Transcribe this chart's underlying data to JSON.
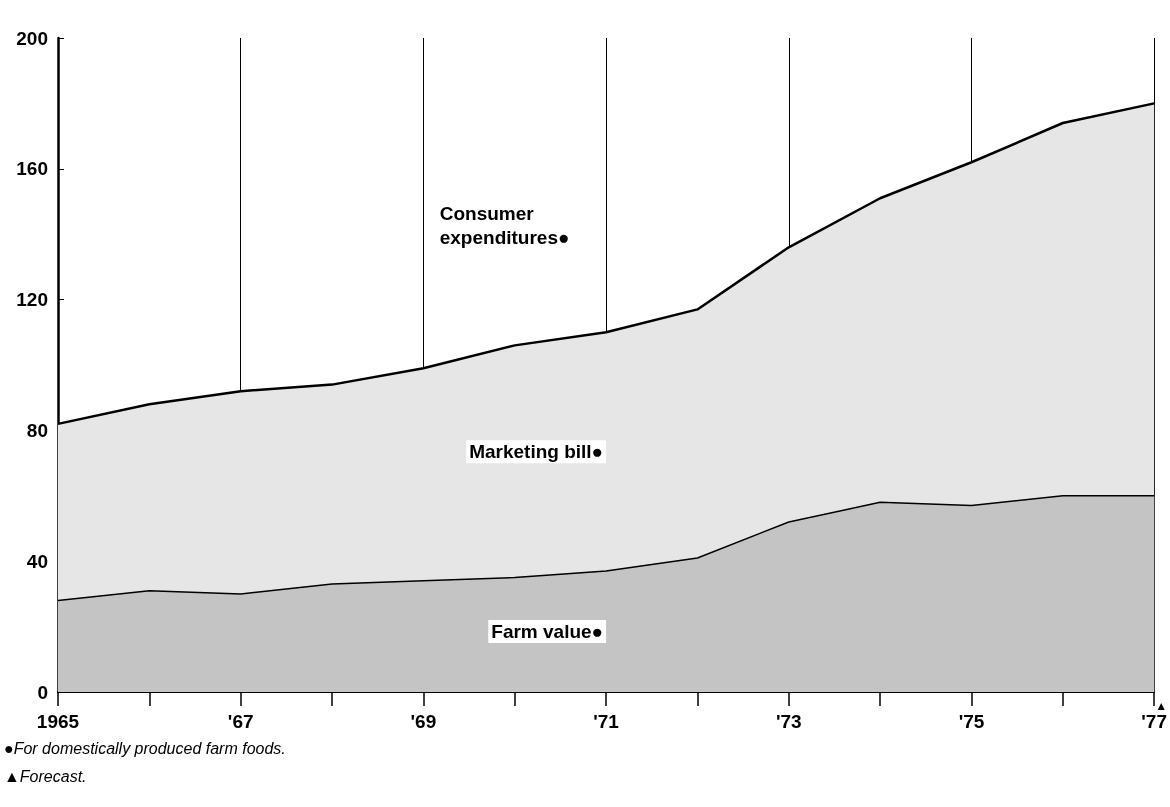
{
  "chart_data": {
    "type": "area",
    "stacked": true,
    "x": [
      1965,
      1966,
      1967,
      1968,
      1969,
      1970,
      1971,
      1972,
      1973,
      1974,
      1975,
      1976,
      1977
    ],
    "series": [
      {
        "name": "Farm value●",
        "color": "#c4c4c4",
        "values": [
          28,
          31,
          30,
          33,
          34,
          35,
          37,
          41,
          52,
          58,
          57,
          60,
          60
        ]
      },
      {
        "name": "Marketing bill●",
        "color": "#e6e6e6",
        "values": [
          54,
          57,
          62,
          61,
          65,
          71,
          73,
          76,
          84,
          93,
          105,
          114,
          120
        ]
      }
    ],
    "xlim": [
      1965,
      1977
    ],
    "xticks": [
      {
        "value": 1965,
        "label": "1965"
      },
      {
        "value": 1966,
        "label": null
      },
      {
        "value": 1967,
        "label": "'67"
      },
      {
        "value": 1968,
        "label": null
      },
      {
        "value": 1969,
        "label": "'69"
      },
      {
        "value": 1970,
        "label": null
      },
      {
        "value": 1971,
        "label": "'71"
      },
      {
        "value": 1972,
        "label": null
      },
      {
        "value": 1973,
        "label": "'73"
      },
      {
        "value": 1974,
        "label": null
      },
      {
        "value": 1975,
        "label": "'75"
      },
      {
        "value": 1976,
        "label": null
      },
      {
        "value": 1977,
        "label": "'77"
      }
    ],
    "ylim": [
      0,
      200
    ],
    "yticks": [
      0,
      40,
      80,
      120,
      160,
      200
    ],
    "grid": "x",
    "marker": "none",
    "annotations": [
      "Consumer expenditures●",
      "▲",
      "●For domestically produced farm foods.",
      "▲Forecast."
    ]
  }
}
